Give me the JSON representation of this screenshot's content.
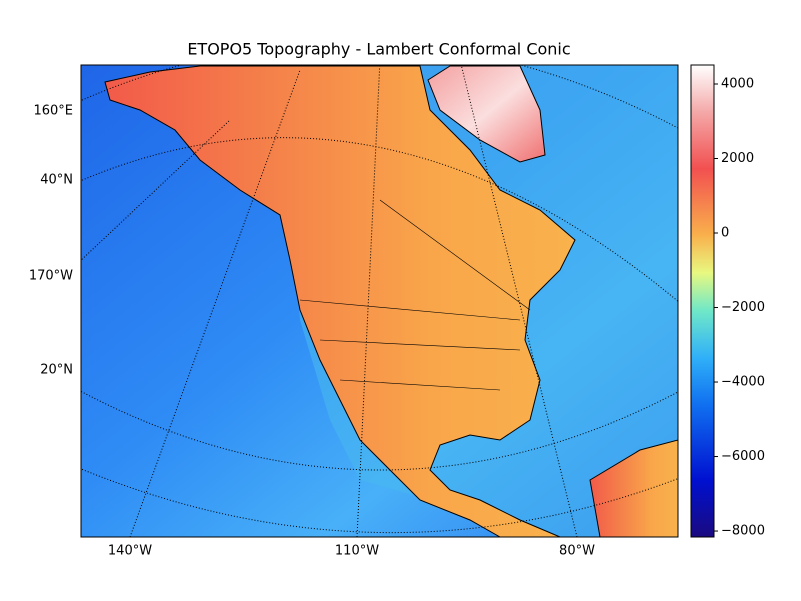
{
  "map": {
    "title": "ETOPO5 Topography - Lambert Conformal Conic",
    "lat_labels": [
      "160°E",
      "40°N",
      "170°W",
      "20°N"
    ],
    "lon_labels": [
      "140°W",
      "110°W",
      "80°W"
    ],
    "colorbar": {
      "clim": [
        -8160,
        4510
      ],
      "ticks": [
        4000,
        2000,
        0,
        {
          "value": -2000,
          "label": "−2000"
        },
        {
          "value": -4000,
          "label": "−4000"
        },
        {
          "value": -6000,
          "label": "−6000"
        },
        {
          "value": -8000,
          "label": "−8000"
        }
      ]
    }
  }
}
